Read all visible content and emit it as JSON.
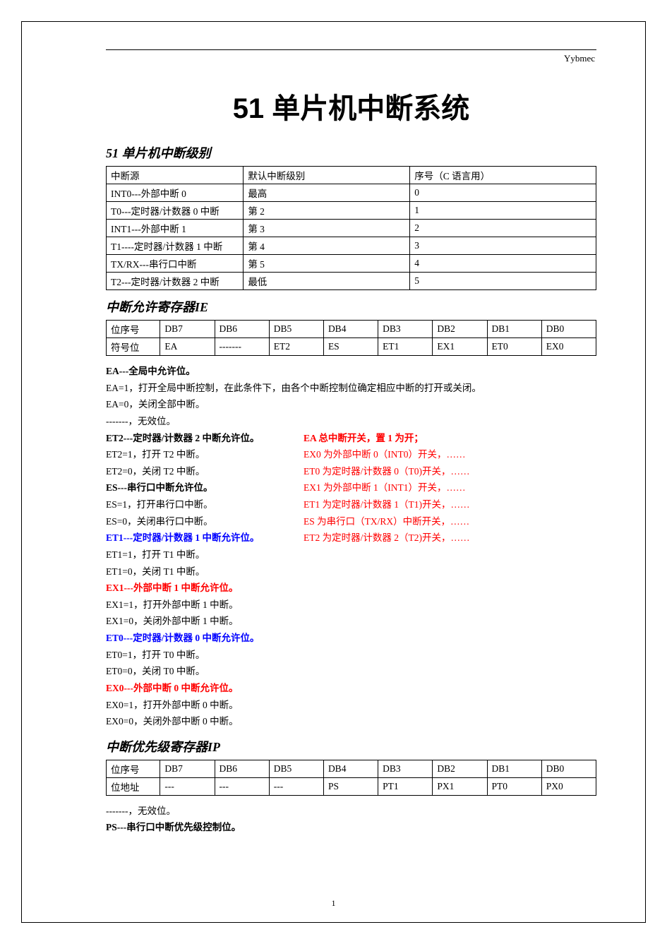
{
  "header": {
    "label": "Yybmec"
  },
  "title": "51 单片机中断系统",
  "section1": {
    "title": "51 单片机中断级别",
    "table": {
      "h1": "中断源",
      "h2": "默认中断级别",
      "h3": "序号（C 语言用）",
      "r1c1": "INT0---外部中断 0",
      "r1c2": "最高",
      "r1c3": "0",
      "r2c1": "T0---定时器/计数器 0 中断",
      "r2c2": "第 2",
      "r2c3": "1",
      "r3c1": "INT1---外部中断 1",
      "r3c2": "第 3",
      "r3c3": "2",
      "r4c1": "T1----定时器/计数器 1 中断",
      "r4c2": "第 4",
      "r4c3": "3",
      "r5c1": "TX/RX---串行口中断",
      "r5c2": "第 5",
      "r5c3": "4",
      "r6c1": "T2---定时器/计数器 2 中断",
      "r6c2": "最低",
      "r6c3": "5"
    }
  },
  "section2": {
    "title": "中断允许寄存器IE",
    "table": {
      "h0": "位序号",
      "h1": "DB7",
      "h2": "DB6",
      "h3": "DB5",
      "h4": "DB4",
      "h5": "DB3",
      "h6": "DB2",
      "h7": "DB1",
      "h8": "DB0",
      "r0": "符号位",
      "r1": "EA",
      "r2": "-------",
      "r3": "ET2",
      "r4": "ES",
      "r5": "ET1",
      "r6": "EX1",
      "r7": "ET0",
      "r8": "EX0"
    },
    "ea_title": "EA---全局中允许位。",
    "ea_1": "EA=1，打开全局中断控制，在此条件下，由各个中断控制位确定相应中断的打开或关闭。",
    "ea_0": "EA=0，关闭全部中断。",
    "dash": "-------，无效位。",
    "et2_title": "ET2---定时器/计数器 2 中断允许位。",
    "et2_1": "ET2=1，打开 T2 中断。",
    "et2_0": "ET2=0，关闭 T2 中断。",
    "es_title": "ES---串行口中断允许位。",
    "es_1": "ES=1，打开串行口中断。",
    "es_0": "ES=0，关闭串行口中断。",
    "et1_title": "ET1---定时器/计数器 1 中断允许位。",
    "et1_1": "ET1=1，打开 T1 中断。",
    "et1_0": "ET1=0，关闭 T1 中断。",
    "ex1_title": "EX1---外部中断 1 中断允许位。",
    "ex1_1": "EX1=1，打开外部中断 1 中断。",
    "ex1_0": "EX1=0，关闭外部中断 1 中断。",
    "et0_title": "ET0---定时器/计数器 0 中断允许位。",
    "et0_1": "ET0=1，打开 T0 中断。",
    "et0_0": "ET0=0，关闭 T0 中断。",
    "ex0_title": "EX0---外部中断 0 中断允许位。",
    "ex0_1": "EX0=1，打开外部中断 0 中断。",
    "ex0_0": "EX0=0，关闭外部中断 0 中断。",
    "right": {
      "l1": "EA 总中断开关，置 1 为开；",
      "l2": "EX0 为外部中断 0（INT0）开关，……",
      "l3": "ET0 为定时器/计数器 0（T0)开关，……",
      "l4": "EX1 为外部中断 1（INT1）开关，……",
      "l5": "ET1 为定时器/计数器 1（T1)开关，……",
      "l6": "ES 为串行口（TX/RX）中断开关，……",
      "l7": "ET2 为定时器/计数器 2（T2)开关，……"
    }
  },
  "section3": {
    "title": "中断优先级寄存器IP",
    "table": {
      "h0": "位序号",
      "h1": "DB7",
      "h2": "DB6",
      "h3": "DB5",
      "h4": "DB4",
      "h5": "DB3",
      "h6": "DB2",
      "h7": "DB1",
      "h8": "DB0",
      "r0": "位地址",
      "r1": "---",
      "r2": "---",
      "r3": "---",
      "r4": "PS",
      "r5": "PT1",
      "r6": "PX1",
      "r7": "PT0",
      "r8": "PX0"
    },
    "dash": "-------，无效位。",
    "ps_title": "PS---串行口中断优先级控制位。"
  },
  "page_num": "1",
  "colors": {
    "text": "#000000",
    "red": "#ff0000",
    "blue": "#0000ff",
    "border": "#000000",
    "background": "#ffffff"
  }
}
